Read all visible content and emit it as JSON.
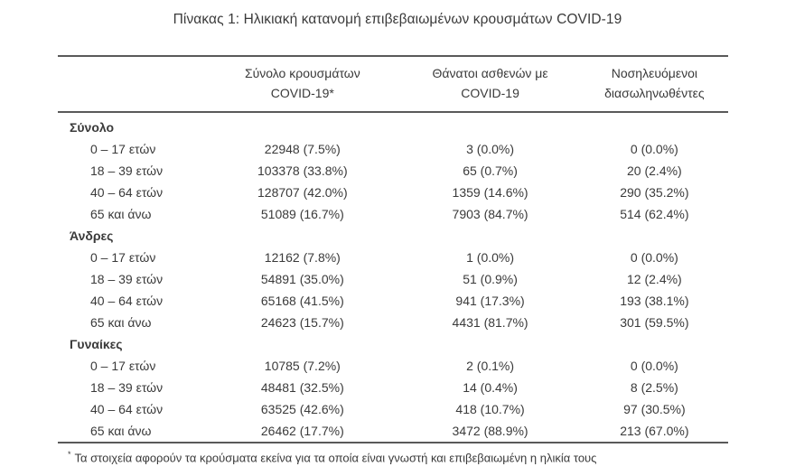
{
  "title": "Πίνακας 1: Ηλικιακή κατανομή επιβεβαιωμένων κρουσμάτων COVID-19",
  "colors": {
    "text": "#3a3a3a",
    "rule": "#595959",
    "background": "#ffffff"
  },
  "table": {
    "columns": [
      {
        "line1": "Σύνολο κρουσμάτων",
        "line2": "COVID-19*"
      },
      {
        "line1": "Θάνατοι ασθενών με",
        "line2": "COVID-19"
      },
      {
        "line1": "Νοσηλευόμενοι",
        "line2": "διασωληνωθέντες"
      }
    ],
    "sections": [
      {
        "name": "Σύνολο",
        "rows": [
          {
            "label": "0 – 17 ετών",
            "cases": "22948 (7.5%)",
            "deaths": "3 (0.0%)",
            "intubated": "0 (0.0%)"
          },
          {
            "label": "18 – 39 ετών",
            "cases": "103378 (33.8%)",
            "deaths": "65 (0.7%)",
            "intubated": "20 (2.4%)"
          },
          {
            "label": "40 – 64 ετών",
            "cases": "128707 (42.0%)",
            "deaths": "1359 (14.6%)",
            "intubated": "290 (35.2%)"
          },
          {
            "label": "65 και άνω",
            "cases": "51089 (16.7%)",
            "deaths": "7903 (84.7%)",
            "intubated": "514 (62.4%)"
          }
        ]
      },
      {
        "name": "Άνδρες",
        "rows": [
          {
            "label": "0 – 17 ετών",
            "cases": "12162 (7.8%)",
            "deaths": "1 (0.0%)",
            "intubated": "0 (0.0%)"
          },
          {
            "label": "18 – 39 ετών",
            "cases": "54891 (35.0%)",
            "deaths": "51 (0.9%)",
            "intubated": "12 (2.4%)"
          },
          {
            "label": "40 – 64 ετών",
            "cases": "65168 (41.5%)",
            "deaths": "941 (17.3%)",
            "intubated": "193 (38.1%)"
          },
          {
            "label": "65 και άνω",
            "cases": "24623 (15.7%)",
            "deaths": "4431 (81.7%)",
            "intubated": "301 (59.5%)"
          }
        ]
      },
      {
        "name": "Γυναίκες",
        "rows": [
          {
            "label": "0 – 17 ετών",
            "cases": "10785 (7.2%)",
            "deaths": "2 (0.1%)",
            "intubated": "0 (0.0%)"
          },
          {
            "label": "18 – 39 ετών",
            "cases": "48481 (32.5%)",
            "deaths": "14 (0.4%)",
            "intubated": "8 (2.5%)"
          },
          {
            "label": "40 – 64 ετών",
            "cases": "63525 (42.6%)",
            "deaths": "418 (10.7%)",
            "intubated": "97 (30.5%)"
          },
          {
            "label": "65 και άνω",
            "cases": "26462 (17.7%)",
            "deaths": "3472 (88.9%)",
            "intubated": "213 (67.0%)"
          }
        ]
      }
    ],
    "footnote_marker": "*",
    "footnote": "Τα στοιχεία αφορούν τα κρούσματα εκείνα για τα οποία είναι γνωστή και επιβεβαιωμένη η ηλικία τους"
  }
}
